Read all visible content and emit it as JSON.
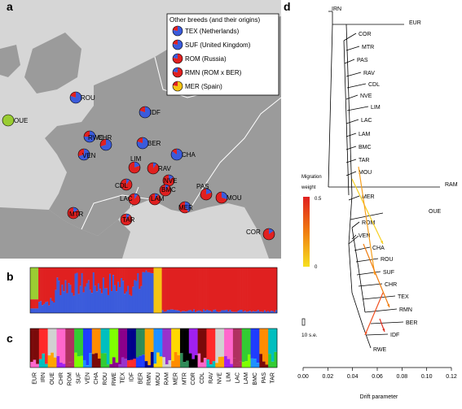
{
  "panels": {
    "a": "a",
    "b": "b",
    "c": "c",
    "d": "d"
  },
  "legend": {
    "title": "Other breeds (and their origins)",
    "items": [
      {
        "text": "TEX (Netherlands)",
        "colors": [
          "#3b5bdb",
          "#e02020"
        ]
      },
      {
        "text": "SUF (United Kingdom)",
        "colors": [
          "#3b5bdb",
          "#e02020"
        ]
      },
      {
        "text": "ROM (Russia)",
        "colors": [
          "#e02020",
          "#3b5bdb"
        ]
      },
      {
        "text": "RMN (ROM x BER)",
        "colors": [
          "#e02020",
          "#3b5bdb"
        ]
      },
      {
        "text": "MER (Spain)",
        "colors": [
          "#f6c413",
          "#e02020"
        ]
      }
    ]
  },
  "map_breeds": [
    {
      "code": "ROU",
      "red": 0.2
    },
    {
      "code": "IDF",
      "red": 0.2
    },
    {
      "code": "OUE",
      "red": 0.0
    },
    {
      "code": "RWE",
      "red": 0.25
    },
    {
      "code": "CHR",
      "red": 0.3
    },
    {
      "code": "BER",
      "red": 0.2
    },
    {
      "code": "VEN",
      "red": 0.3
    },
    {
      "code": "CHA",
      "red": 0.15
    },
    {
      "code": "LIM",
      "red": 0.8
    },
    {
      "code": "RAV",
      "red": 0.9
    },
    {
      "code": "CDL",
      "red": 0.9
    },
    {
      "code": "NVE",
      "red": 0.85
    },
    {
      "code": "BMC",
      "red": 0.9
    },
    {
      "code": "LAC",
      "red": 0.9
    },
    {
      "code": "LAM",
      "red": 0.9
    },
    {
      "code": "PAS",
      "red": 0.8
    },
    {
      "code": "MER",
      "red": 0.6
    },
    {
      "code": "MOU",
      "red": 0.7
    },
    {
      "code": "MTR",
      "red": 0.85
    },
    {
      "code": "TAR",
      "red": 0.9
    },
    {
      "code": "COR",
      "red": 0.85
    }
  ],
  "breed_axis": [
    "EUR",
    "IRN",
    "OUE",
    "CHR",
    "ROM",
    "SUF",
    "VEN",
    "CHA",
    "ROU",
    "RWE",
    "TEX",
    "IDF",
    "BER",
    "RMN",
    "MOU",
    "RAM",
    "MER",
    "MTR",
    "COR",
    "CDL",
    "RAV",
    "NVE",
    "LIM",
    "LAC",
    "LAM",
    "BMC",
    "PAS",
    "TAR"
  ],
  "tree": {
    "tips": [
      "IRN",
      "EUR",
      "COR",
      "MTR",
      "PAS",
      "RAV",
      "CDL",
      "NVE",
      "LIM",
      "LAC",
      "LAM",
      "BMC",
      "TAR",
      "MOU",
      "RAM",
      "MER",
      "OUE",
      "ROM",
      "VEN",
      "CHA",
      "ROU",
      "SUF",
      "CHR",
      "TEX",
      "RMN",
      "BER",
      "IDF",
      "RWE"
    ],
    "scale_text": "10 s.e.",
    "migration_title": "Migration",
    "migration_weight": "weight",
    "migration_max": "0.5",
    "migration_min": "0",
    "xlabel": "Drift parameter",
    "xticks": [
      "0.00",
      "0.02",
      "0.04",
      "0.06",
      "0.08",
      "0.10",
      "0.12"
    ]
  },
  "colors": {
    "blue": "#3b5bdb",
    "red": "#e02020",
    "yellow": "#f6c413",
    "green": "#9acd32",
    "sea": "#d6d6d6",
    "land": "#9b9b9b",
    "border": "#ffffff"
  }
}
